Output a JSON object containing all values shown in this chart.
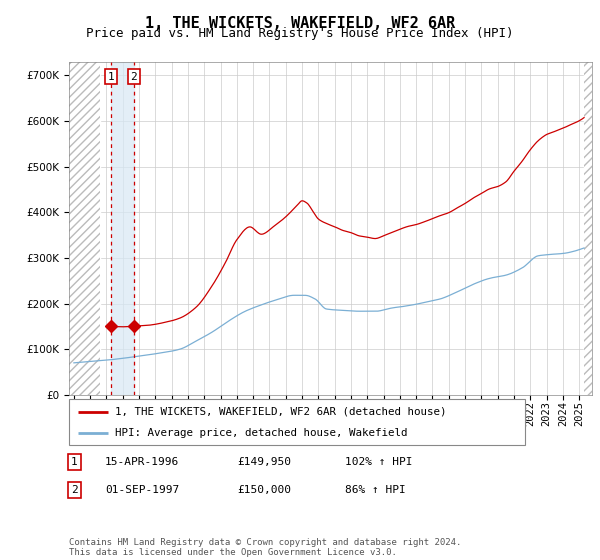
{
  "title": "1, THE WICKETS, WAKEFIELD, WF2 6AR",
  "subtitle": "Price paid vs. HM Land Registry's House Price Index (HPI)",
  "ytick_values": [
    0,
    100000,
    200000,
    300000,
    400000,
    500000,
    600000,
    700000
  ],
  "ylim": [
    0,
    730000
  ],
  "xlim_start": 1993.7,
  "xlim_end": 2025.8,
  "red_line_color": "#cc0000",
  "blue_line_color": "#7bafd4",
  "sale1_date": 1996.29,
  "sale1_price": 149950,
  "sale2_date": 1997.67,
  "sale2_price": 150000,
  "hatch_end": 1995.6,
  "hatch_start_right": 2025.3,
  "blue_shade_color": "#d8e8f5",
  "legend_red_label": "1, THE WICKETS, WAKEFIELD, WF2 6AR (detached house)",
  "legend_blue_label": "HPI: Average price, detached house, Wakefield",
  "table_rows": [
    {
      "num": "1",
      "date": "15-APR-1996",
      "price": "£149,950",
      "hpi": "102% ↑ HPI"
    },
    {
      "num": "2",
      "date": "01-SEP-1997",
      "price": "£150,000",
      "hpi": "86% ↑ HPI"
    }
  ],
  "footer": "Contains HM Land Registry data © Crown copyright and database right 2024.\nThis data is licensed under the Open Government Licence v3.0.",
  "grid_color": "#cccccc",
  "title_fontsize": 11,
  "subtitle_fontsize": 9,
  "tick_fontsize": 7.5
}
